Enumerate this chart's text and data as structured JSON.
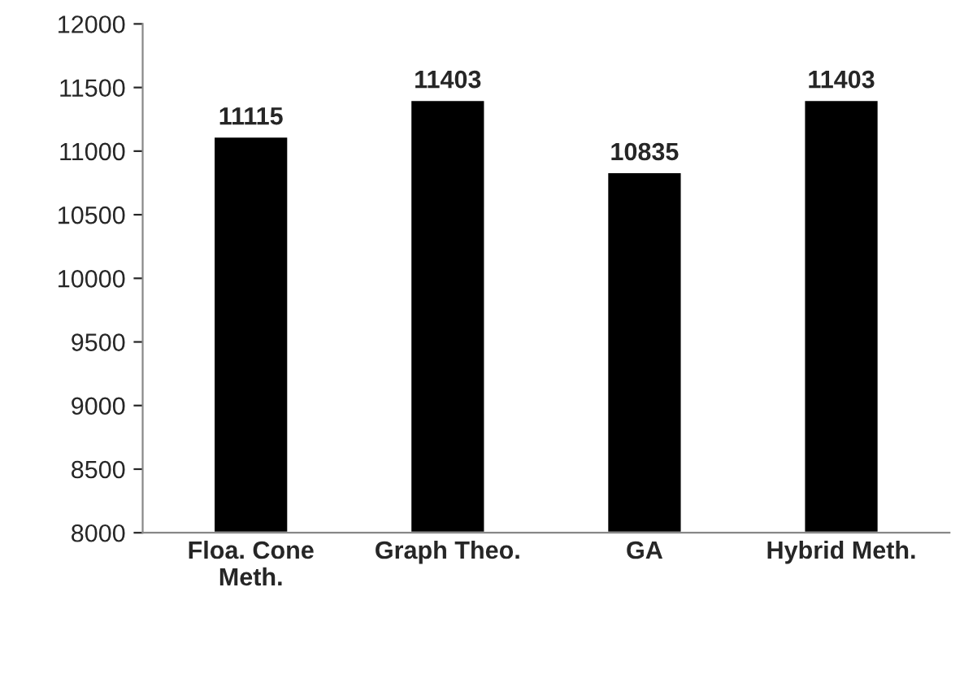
{
  "chart_data": {
    "type": "bar",
    "categories": [
      "Floa. Cone\nMeth.",
      "Graph Theo.",
      "GA",
      "Hybrid Meth."
    ],
    "values": [
      11115,
      11403,
      10835,
      11403
    ],
    "color": "#000000",
    "ylim": [
      8000,
      12000
    ],
    "yticks": [
      8000,
      8500,
      9000,
      9500,
      10000,
      10500,
      11000,
      11500,
      12000
    ],
    "grid": false,
    "data_labels": true
  }
}
